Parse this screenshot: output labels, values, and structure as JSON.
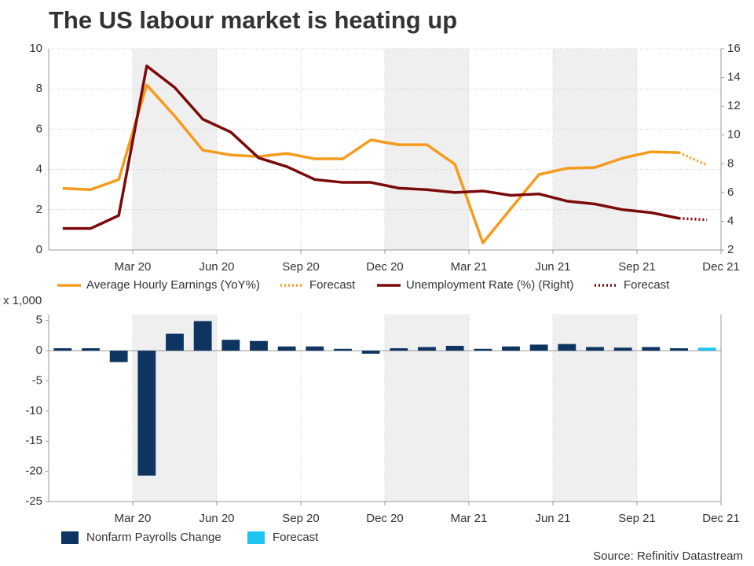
{
  "chart_data": [
    {
      "type": "line",
      "title": "The US labour market is heating up",
      "categories": [
        null,
        null,
        null,
        "Mar 20",
        null,
        null,
        "Jun 20",
        null,
        null,
        "Sep 20",
        null,
        null,
        "Dec 20",
        null,
        null,
        "Mar 21",
        null,
        null,
        "Jun 21",
        null,
        null,
        "Sep 21",
        null,
        null,
        "Dec 21"
      ],
      "series": [
        {
          "name": "Average Hourly Earnings (YoY%)",
          "color": "#f59b1b",
          "values": [
            3.06,
            3.0,
            3.5,
            8.2,
            6.65,
            4.96,
            4.72,
            4.64,
            4.8,
            4.53,
            4.53,
            5.47,
            5.23,
            5.23,
            4.26,
            0.35,
            2.06,
            3.75,
            4.06,
            4.1,
            4.57,
            4.88,
            4.84,
            null,
            null
          ]
        },
        {
          "name": "Forecast",
          "color": "#f59b1b",
          "dash": true,
          "values": [
            null,
            null,
            null,
            null,
            null,
            null,
            null,
            null,
            null,
            null,
            null,
            null,
            null,
            null,
            null,
            null,
            null,
            null,
            null,
            null,
            null,
            null,
            4.84,
            4.22,
            null
          ]
        },
        {
          "name": "Unemployment Rate (%) (Right)",
          "color": "#7b0a0a",
          "axis": "y2",
          "values": [
            3.5,
            3.5,
            4.4,
            14.8,
            13.3,
            11.1,
            10.2,
            8.4,
            7.8,
            6.9,
            6.7,
            6.7,
            6.3,
            6.2,
            6.0,
            6.1,
            5.8,
            5.9,
            5.4,
            5.2,
            4.8,
            4.6,
            4.2,
            null,
            null
          ]
        },
        {
          "name": "Forecast",
          "color": "#7b0a0a",
          "axis": "y2",
          "dash": true,
          "values": [
            null,
            null,
            null,
            null,
            null,
            null,
            null,
            null,
            null,
            null,
            null,
            null,
            null,
            null,
            null,
            null,
            null,
            null,
            null,
            null,
            null,
            null,
            4.2,
            4.1,
            null
          ]
        }
      ],
      "ylim": [
        0,
        10
      ],
      "yticks": [
        0,
        2,
        4,
        6,
        8,
        10
      ],
      "y2lim": [
        2,
        16
      ],
      "y2ticks": [
        2,
        4,
        6,
        8,
        10,
        12,
        14,
        16
      ],
      "grid": true
    },
    {
      "type": "bar",
      "y_label": "x 1,000",
      "source": "Source: Refinitiv Datastream",
      "categories": [
        null,
        null,
        null,
        "Mar 20",
        null,
        null,
        "Jun 20",
        null,
        null,
        "Sep 20",
        null,
        null,
        "Dec 20",
        null,
        null,
        "Mar 21",
        null,
        null,
        "Jun 21",
        null,
        null,
        "Sep 21",
        null,
        null,
        "Dec 21"
      ],
      "series": [
        {
          "name": "Nonfarm Payrolls Change",
          "color": "#0e3461",
          "values": [
            0.4,
            0.4,
            -1.9,
            -20.7,
            2.8,
            4.9,
            1.8,
            1.6,
            0.7,
            0.7,
            0.3,
            -0.5,
            0.4,
            0.6,
            0.8,
            0.3,
            0.7,
            1.0,
            1.1,
            0.6,
            0.5,
            0.6,
            0.4,
            null,
            null
          ]
        },
        {
          "name": "Forecast",
          "color": "#1ec5f0",
          "values": [
            null,
            null,
            null,
            null,
            null,
            null,
            null,
            null,
            null,
            null,
            null,
            null,
            null,
            null,
            null,
            null,
            null,
            null,
            null,
            null,
            null,
            null,
            null,
            0.5,
            null
          ]
        }
      ],
      "ylim": [
        -25,
        6
      ],
      "yticks": [
        5,
        0,
        -5,
        -10,
        -15,
        -20,
        -25
      ],
      "grid": false
    }
  ]
}
